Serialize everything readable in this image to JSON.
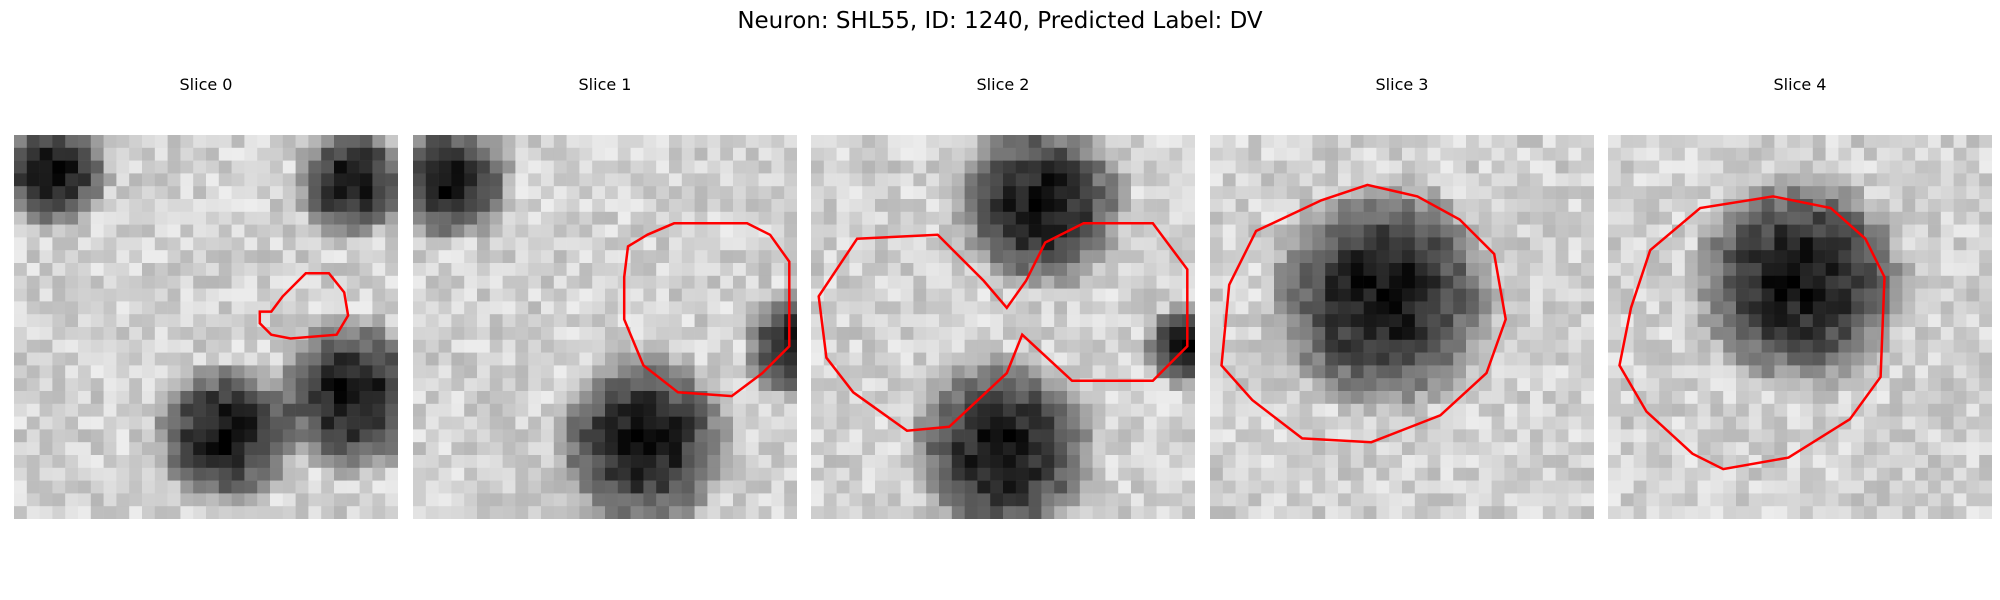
{
  "figure": {
    "title": "Neuron: SHL55, ID: 1240, Predicted Label: DV"
  },
  "colors": {
    "contour": "#ff0000",
    "image_colormap": "grayscale"
  },
  "slices": [
    {
      "title": "Slice 0",
      "dark_blobs": [
        [
          0.1,
          0.1,
          0.16
        ],
        [
          0.88,
          0.12,
          0.16
        ],
        [
          0.88,
          0.68,
          0.22
        ],
        [
          0.55,
          0.78,
          0.2
        ]
      ],
      "contour": [
        [
          0.7,
          0.42
        ],
        [
          0.67,
          0.46
        ],
        [
          0.64,
          0.46
        ],
        [
          0.64,
          0.49
        ],
        [
          0.67,
          0.52
        ],
        [
          0.72,
          0.53
        ],
        [
          0.84,
          0.52
        ],
        [
          0.87,
          0.47
        ],
        [
          0.86,
          0.41
        ],
        [
          0.82,
          0.36
        ],
        [
          0.76,
          0.36
        ]
      ]
    },
    {
      "title": "Slice 1",
      "dark_blobs": [
        [
          0.1,
          0.12,
          0.17
        ],
        [
          0.6,
          0.8,
          0.25
        ],
        [
          1.0,
          0.55,
          0.15
        ]
      ],
      "contour": [
        [
          0.61,
          0.26
        ],
        [
          0.56,
          0.29
        ],
        [
          0.55,
          0.37
        ],
        [
          0.55,
          0.48
        ],
        [
          0.6,
          0.6
        ],
        [
          0.69,
          0.67
        ],
        [
          0.83,
          0.68
        ],
        [
          0.91,
          0.62
        ],
        [
          0.98,
          0.55
        ],
        [
          0.98,
          0.33
        ],
        [
          0.93,
          0.26
        ],
        [
          0.87,
          0.23
        ],
        [
          0.68,
          0.23
        ]
      ]
    },
    {
      "title": "Slice 2",
      "dark_blobs": [
        [
          0.6,
          0.18,
          0.24
        ],
        [
          0.5,
          0.82,
          0.26
        ],
        [
          0.98,
          0.55,
          0.12
        ]
      ],
      "contour": [
        [
          0.02,
          0.42
        ],
        [
          0.12,
          0.27
        ],
        [
          0.33,
          0.26
        ],
        [
          0.45,
          0.38
        ],
        [
          0.51,
          0.45
        ],
        [
          0.56,
          0.38
        ],
        [
          0.61,
          0.28
        ],
        [
          0.71,
          0.23
        ],
        [
          0.89,
          0.23
        ],
        [
          0.98,
          0.35
        ],
        [
          0.98,
          0.55
        ],
        [
          0.89,
          0.64
        ],
        [
          0.68,
          0.64
        ],
        [
          0.55,
          0.52
        ],
        [
          0.51,
          0.62
        ],
        [
          0.36,
          0.76
        ],
        [
          0.25,
          0.77
        ],
        [
          0.11,
          0.67
        ],
        [
          0.04,
          0.58
        ]
      ]
    },
    {
      "title": "Slice 3",
      "dark_blobs": [
        [
          0.45,
          0.42,
          0.32
        ]
      ],
      "contour": [
        [
          0.05,
          0.39
        ],
        [
          0.12,
          0.25
        ],
        [
          0.29,
          0.17
        ],
        [
          0.41,
          0.13
        ],
        [
          0.54,
          0.16
        ],
        [
          0.65,
          0.22
        ],
        [
          0.74,
          0.31
        ],
        [
          0.77,
          0.48
        ],
        [
          0.72,
          0.62
        ],
        [
          0.6,
          0.73
        ],
        [
          0.42,
          0.8
        ],
        [
          0.24,
          0.79
        ],
        [
          0.11,
          0.69
        ],
        [
          0.03,
          0.6
        ]
      ]
    },
    {
      "title": "Slice 4",
      "dark_blobs": [
        [
          0.5,
          0.38,
          0.3
        ]
      ],
      "contour": [
        [
          0.06,
          0.45
        ],
        [
          0.11,
          0.3
        ],
        [
          0.24,
          0.19
        ],
        [
          0.43,
          0.16
        ],
        [
          0.58,
          0.19
        ],
        [
          0.67,
          0.27
        ],
        [
          0.72,
          0.37
        ],
        [
          0.71,
          0.63
        ],
        [
          0.63,
          0.74
        ],
        [
          0.47,
          0.84
        ],
        [
          0.3,
          0.87
        ],
        [
          0.22,
          0.83
        ],
        [
          0.1,
          0.72
        ],
        [
          0.03,
          0.6
        ]
      ]
    }
  ]
}
